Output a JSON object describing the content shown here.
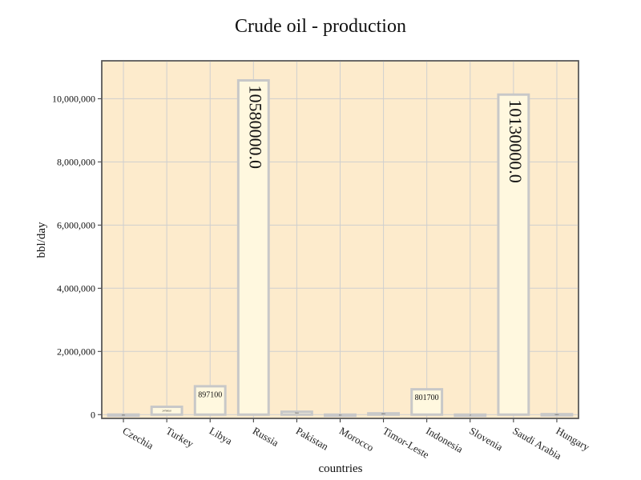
{
  "chart_data": {
    "type": "bar",
    "title": "Crude oil - production",
    "xlabel": "countries",
    "ylabel": "bbl/day",
    "categories": [
      "Czechia",
      "Turkey",
      "Libya",
      "Russia",
      "Pakistan",
      "Morocco",
      "Timor-Leste",
      "Indonesia",
      "Slovenia",
      "Saudi Arabia",
      "Hungary"
    ],
    "values": [
      2000,
      247000,
      897100,
      10580000,
      91000,
      160,
      40000,
      801700,
      5,
      10130000,
      14000
    ],
    "value_labels": [
      "2000.0",
      "247000.0",
      "897100",
      "10580000.0",
      "91000.0",
      "160.0",
      "40000.0",
      "801700",
      "5.0",
      "10130000.0",
      "14000.0"
    ],
    "ylim": [
      -120000,
      11200000
    ],
    "yticks": [
      0,
      2000000,
      4000000,
      6000000,
      8000000,
      10000000
    ],
    "ytick_labels": [
      "0",
      "2,000,000",
      "4,000,000",
      "6,000,000",
      "8,000,000",
      "10,000,000"
    ],
    "grid": true,
    "colors": {
      "plot_bg": "#fdebcc",
      "bar_fill": "#fff8df",
      "bar_edge": "#c8c8c8",
      "grid": "#cfcfcf"
    }
  }
}
